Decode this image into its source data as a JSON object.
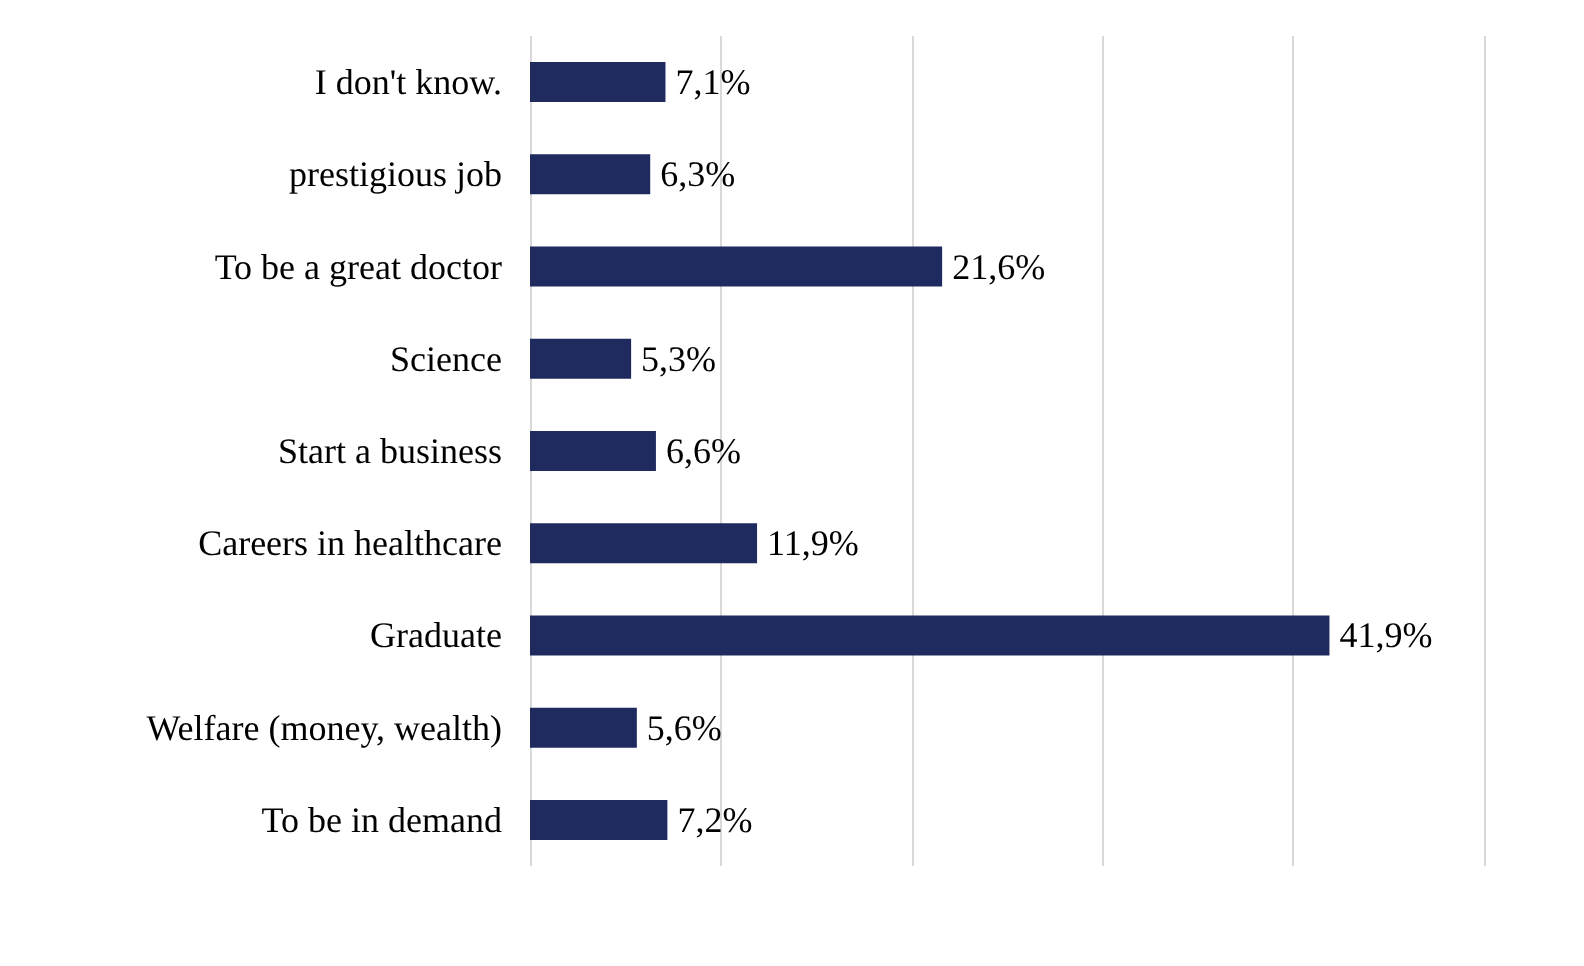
{
  "chart_data": {
    "type": "bar",
    "orientation": "horizontal",
    "categories": [
      "I don't know.",
      "prestigious job",
      "To be a great doctor",
      "Science",
      "Start a business",
      "Careers in healthcare",
      "Graduate",
      "Welfare (money, wealth)",
      "To be in demand"
    ],
    "values": [
      7.1,
      6.3,
      21.6,
      5.3,
      6.6,
      11.9,
      41.9,
      5.6,
      7.2
    ],
    "value_labels": [
      "7,1%",
      "6,3%",
      "21,6%",
      "5,3%",
      "6,6%",
      "11,9%",
      "41,9%",
      "5,6%",
      "7,2%"
    ],
    "color": "#1f2a5e",
    "xlim": [
      0,
      50
    ],
    "xticks": [
      {
        "value": 0,
        "label": null
      },
      {
        "value": 10,
        "label": null
      },
      {
        "value": 20,
        "label": null
      },
      {
        "value": 30,
        "label": null
      },
      {
        "value": 40,
        "label": null
      },
      {
        "value": 50,
        "label": null
      }
    ],
    "grid": "x",
    "tick_labels": "y"
  }
}
